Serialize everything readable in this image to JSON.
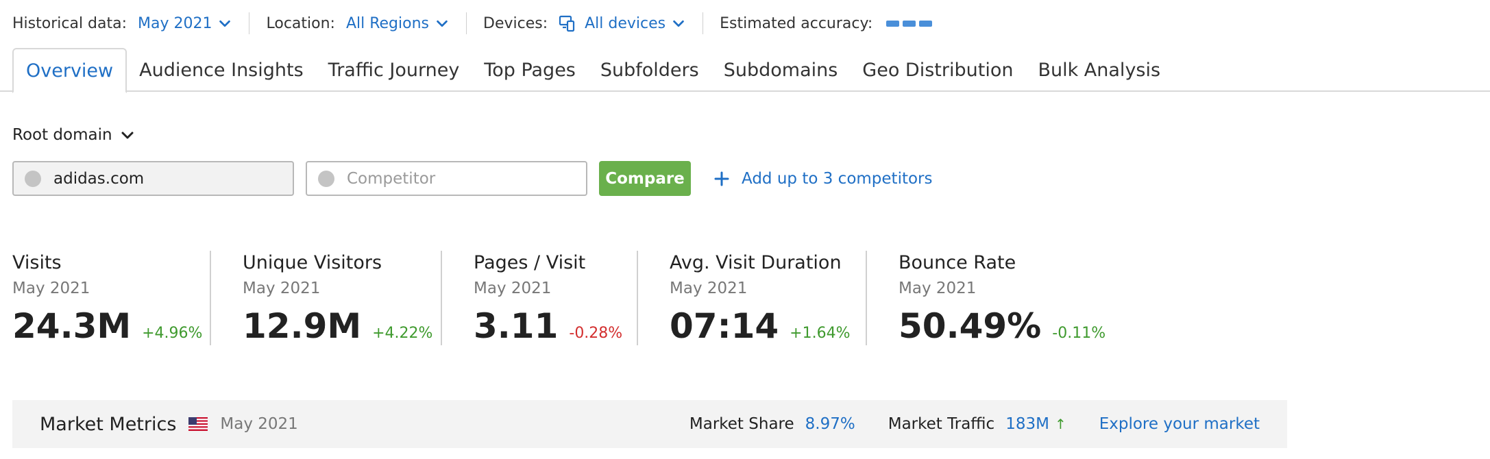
{
  "filters": {
    "historical_label": "Historical data:",
    "historical_value": "May 2021",
    "location_label": "Location:",
    "location_value": "All Regions",
    "devices_label": "Devices:",
    "devices_value": "All devices",
    "accuracy_label": "Estimated accuracy:",
    "accuracy_level": 3
  },
  "tabs": [
    {
      "label": "Overview",
      "active": true
    },
    {
      "label": "Audience Insights"
    },
    {
      "label": "Traffic Journey"
    },
    {
      "label": "Top Pages"
    },
    {
      "label": "Subfolders"
    },
    {
      "label": "Subdomains"
    },
    {
      "label": "Geo Distribution"
    },
    {
      "label": "Bulk Analysis"
    }
  ],
  "root_domain": "Root domain",
  "inputs": {
    "domain_value": "adidas.com",
    "competitor_placeholder": "Competitor",
    "compare_label": "Compare",
    "add_competitors_label": "Add up to 3 competitors"
  },
  "metrics": [
    {
      "title": "Visits",
      "date": "May 2021",
      "value": "24.3M",
      "change": "+4.96%",
      "trend": "positive"
    },
    {
      "title": "Unique Visitors",
      "date": "May 2021",
      "value": "12.9M",
      "change": "+4.22%",
      "trend": "positive"
    },
    {
      "title": "Pages / Visit",
      "date": "May 2021",
      "value": "3.11",
      "change": "-0.28%",
      "trend": "negative"
    },
    {
      "title": "Avg. Visit Duration",
      "date": "May 2021",
      "value": "07:14",
      "change": "+1.64%",
      "trend": "positive"
    },
    {
      "title": "Bounce Rate",
      "date": "May 2021",
      "value": "50.49%",
      "change": "-0.11%",
      "trend": "positive"
    }
  ],
  "market": {
    "title": "Market Metrics",
    "flag_icon": "us-flag-icon",
    "date": "May 2021",
    "share_label": "Market Share",
    "share_value": "8.97%",
    "traffic_label": "Market Traffic",
    "traffic_value": "183M",
    "explore_label": "Explore your market"
  },
  "colors": {
    "accent": "#1f6fc5",
    "positive": "#3f9a2e",
    "negative": "#d32f2f",
    "compare_button": "#6ab04c"
  }
}
